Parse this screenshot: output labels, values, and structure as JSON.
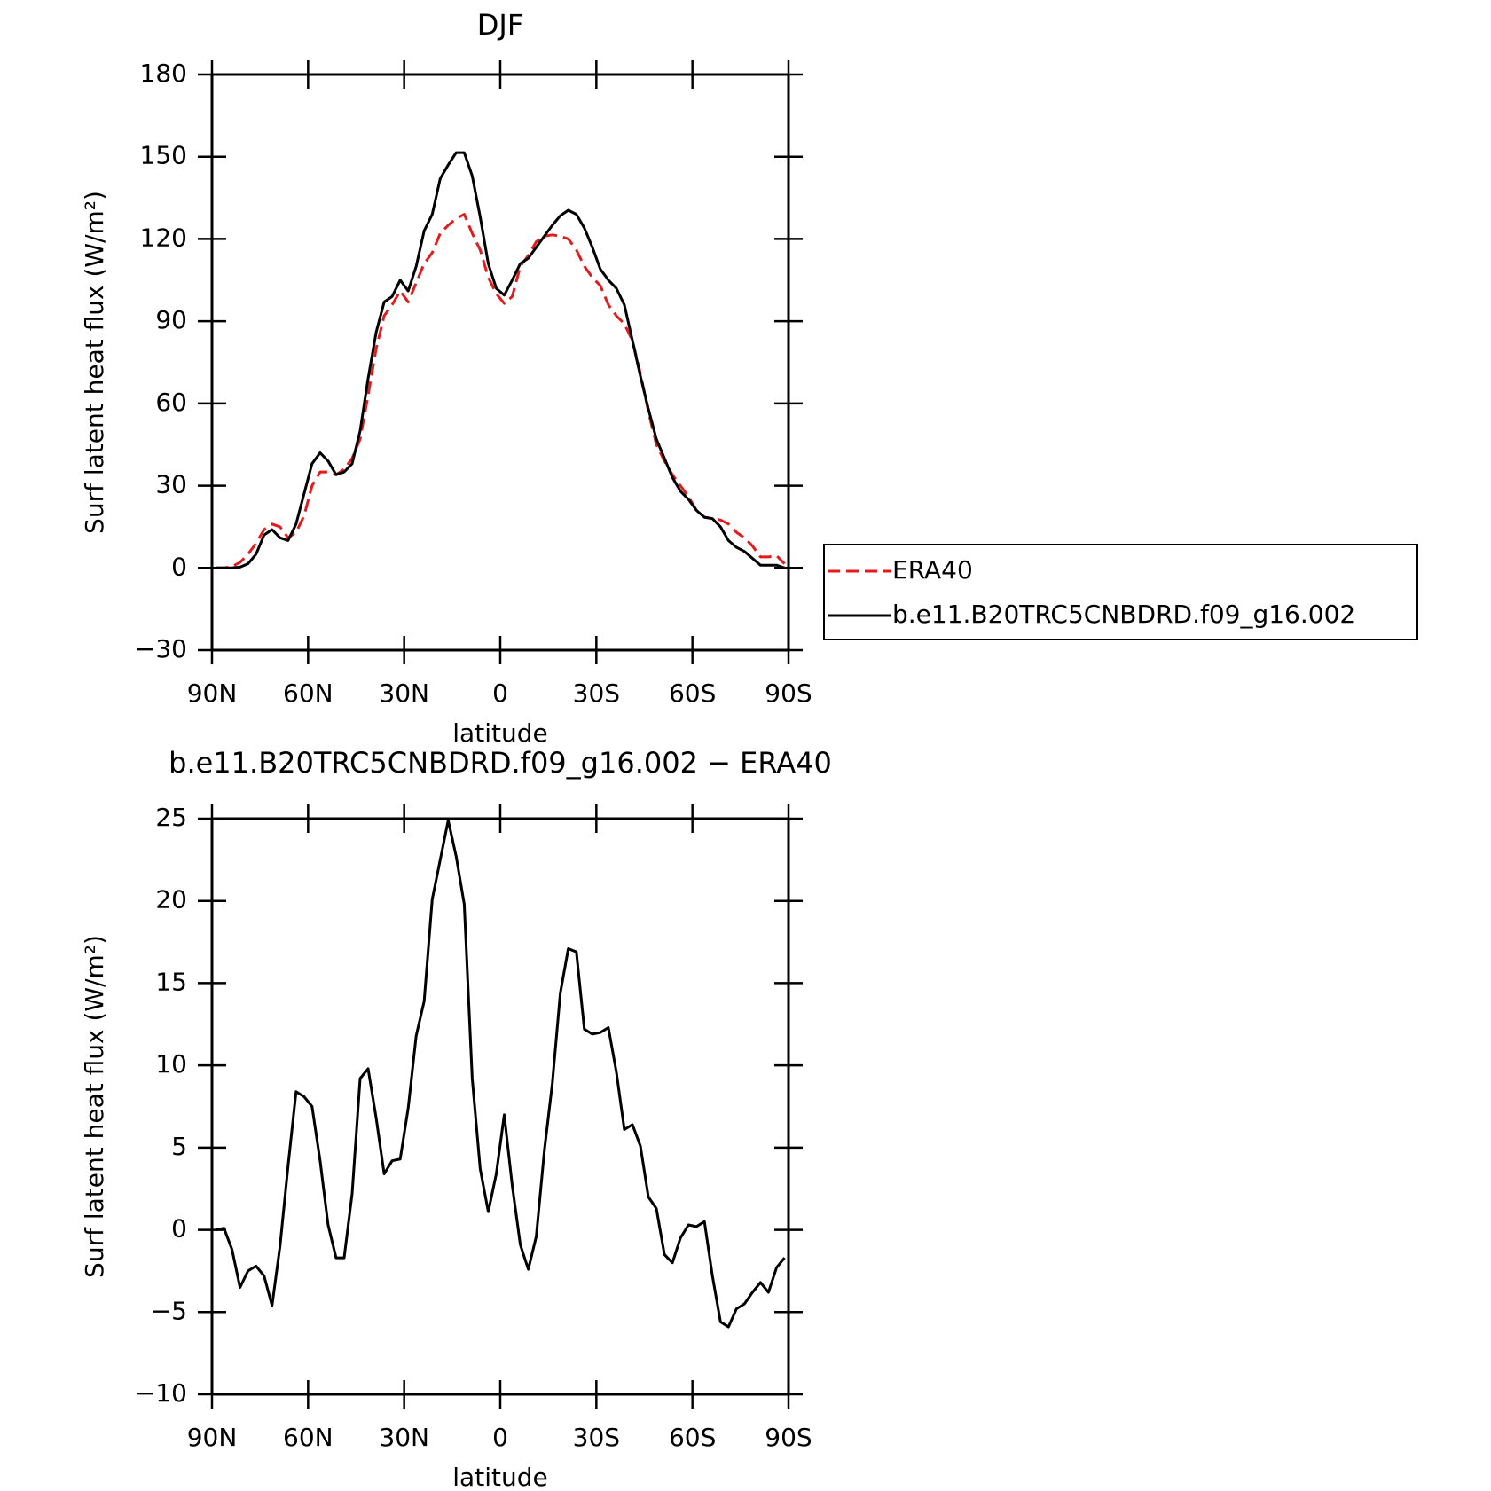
{
  "chart_data": [
    {
      "type": "line",
      "title": "DJF",
      "xlabel": "latitude",
      "ylabel": "Surf latent heat flux (W/m²)",
      "x": [
        88.75,
        86.25,
        83.75,
        81.25,
        78.75,
        76.25,
        73.75,
        71.25,
        68.75,
        66.25,
        63.75,
        61.25,
        58.75,
        56.25,
        53.75,
        51.25,
        48.75,
        46.25,
        43.75,
        41.25,
        38.75,
        36.25,
        33.75,
        31.25,
        28.75,
        26.25,
        23.75,
        21.25,
        18.75,
        16.25,
        13.75,
        11.25,
        8.75,
        6.25,
        3.75,
        1.25,
        -1.25,
        -3.75,
        -6.25,
        -8.75,
        -11.25,
        -13.75,
        -16.25,
        -18.75,
        -21.25,
        -23.75,
        -26.25,
        -28.75,
        -31.25,
        -33.75,
        -36.25,
        -38.75,
        -41.25,
        -43.75,
        -46.25,
        -48.75,
        -51.25,
        -53.75,
        -56.25,
        -58.75,
        -61.25,
        -63.75,
        -66.25,
        -68.75,
        -71.25,
        -73.75,
        -76.25,
        -78.75,
        -81.25,
        -83.75,
        -86.25,
        -88.75
      ],
      "series": [
        {
          "name": "ERA40",
          "color": "#e41a1c",
          "dash": true,
          "values": [
            0,
            0,
            0.5,
            2,
            5,
            9,
            14,
            16,
            15,
            11,
            13,
            19,
            30,
            35,
            35,
            34,
            36,
            40,
            47,
            63,
            80,
            92,
            96,
            101,
            97,
            104,
            111,
            115,
            122,
            125,
            127.5,
            129,
            122,
            116,
            106,
            100,
            96.5,
            99,
            110,
            114,
            119,
            121,
            121.5,
            121,
            120,
            116,
            110,
            106,
            103,
            96,
            92,
            89,
            83,
            71,
            57,
            45,
            39,
            34,
            30,
            26,
            21,
            18.5,
            18,
            17.5,
            16,
            13,
            11,
            8,
            4,
            4,
            4.5,
            1.5
          ]
        },
        {
          "name": "b.e11.B20TRC5CNBDRD.f09_g16.002",
          "color": "#000000",
          "dash": false,
          "values": [
            0,
            0,
            0,
            0.3,
            1.5,
            5,
            12,
            14,
            11,
            10,
            16,
            27,
            38,
            42,
            39,
            34,
            35,
            38,
            50,
            69,
            86,
            97,
            99,
            105,
            101,
            110,
            123,
            129,
            142,
            147,
            151.5,
            151.5,
            143,
            128,
            111,
            102,
            99.5,
            105,
            111,
            113,
            117,
            121,
            125,
            128.5,
            130.5,
            129,
            124,
            117,
            109,
            105,
            102,
            96,
            83,
            70,
            58,
            47,
            40,
            33,
            28,
            25,
            21,
            18.5,
            18,
            15,
            10,
            7.5,
            6,
            3.5,
            1,
            1,
            1,
            0
          ]
        }
      ],
      "xlim": [
        90,
        -90
      ],
      "xticks": [
        {
          "value": 90,
          "label": "90N"
        },
        {
          "value": 60,
          "label": "60N"
        },
        {
          "value": 30,
          "label": "30N"
        },
        0,
        {
          "value": -30,
          "label": "30S"
        },
        {
          "value": -60,
          "label": "60S"
        },
        {
          "value": -90,
          "label": "90S"
        }
      ],
      "ylim": [
        -30,
        180
      ],
      "yticks": [
        {
          "value": -30,
          "label": "−30"
        },
        0,
        30,
        60,
        90,
        120,
        150,
        180
      ],
      "legend": "right"
    },
    {
      "type": "line",
      "title": "b.e11.B20TRC5CNBDRD.f09_g16.002 − ERA40",
      "xlabel": "latitude",
      "ylabel": "Surf latent heat flux (W/m²)",
      "x": [
        88.75,
        86.25,
        83.75,
        81.25,
        78.75,
        76.25,
        73.75,
        71.25,
        68.75,
        66.25,
        63.75,
        61.25,
        58.75,
        56.25,
        53.75,
        51.25,
        48.75,
        46.25,
        43.75,
        41.25,
        38.75,
        36.25,
        33.75,
        31.25,
        28.75,
        26.25,
        23.75,
        21.25,
        18.75,
        16.25,
        13.75,
        11.25,
        8.75,
        6.25,
        3.75,
        1.25,
        -1.25,
        -3.75,
        -6.25,
        -8.75,
        -11.25,
        -13.75,
        -16.25,
        -18.75,
        -21.25,
        -23.75,
        -26.25,
        -28.75,
        -31.25,
        -33.75,
        -36.25,
        -38.75,
        -41.25,
        -43.75,
        -46.25,
        -48.75,
        -51.25,
        -53.75,
        -56.25,
        -58.75,
        -61.25,
        -63.75,
        -66.25,
        -68.75,
        -71.25,
        -73.75,
        -76.25,
        -78.75,
        -81.25,
        -83.75,
        -86.25,
        -88.75
      ],
      "series": [
        {
          "color": "#000000",
          "dash": false,
          "values": [
            0,
            0.1,
            -1.2,
            -3.5,
            -2.5,
            -2.2,
            -2.8,
            -4.6,
            -1,
            3.9,
            8.4,
            8.1,
            7.5,
            4.2,
            0.3,
            -1.7,
            -1.7,
            2.2,
            9.2,
            9.8,
            6.8,
            3.4,
            4.2,
            4.3,
            7.4,
            11.8,
            13.9,
            20.1,
            22.5,
            24.9,
            22.7,
            19.8,
            9.2,
            3.7,
            1.1,
            3.4,
            7.0,
            2.7,
            -0.9,
            -2.4,
            -0.4,
            4.8,
            8.9,
            14.4,
            17.1,
            16.9,
            12.2,
            11.9,
            12,
            12.3,
            9.6,
            6.1,
            6.4,
            5.1,
            2.0,
            1.3,
            -1.5,
            -2.0,
            -0.5,
            0.3,
            0.2,
            0.5,
            -2.8,
            -5.6,
            -5.9,
            -4.8,
            -4.5,
            -3.8,
            -3.2,
            -3.8,
            -2.3,
            -1.7
          ]
        }
      ],
      "xlim": [
        90,
        -90
      ],
      "xticks": [
        {
          "value": 90,
          "label": "90N"
        },
        {
          "value": 60,
          "label": "60N"
        },
        {
          "value": 30,
          "label": "30N"
        },
        0,
        {
          "value": -30,
          "label": "30S"
        },
        {
          "value": -60,
          "label": "60S"
        },
        {
          "value": -90,
          "label": "90S"
        }
      ],
      "ylim": [
        -10,
        25
      ],
      "yticks": [
        {
          "value": -10,
          "label": "−10"
        },
        {
          "value": -5,
          "label": "−5"
        },
        0,
        5,
        10,
        15,
        20,
        25
      ]
    }
  ]
}
